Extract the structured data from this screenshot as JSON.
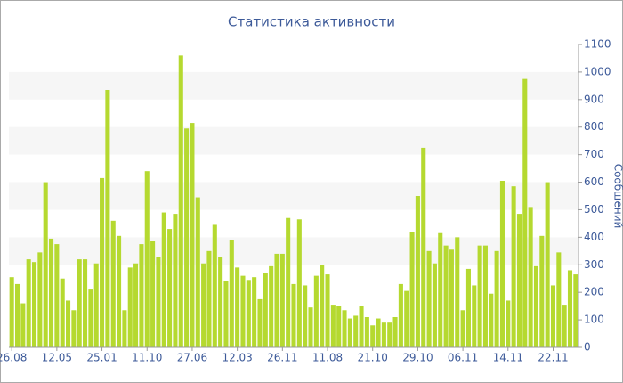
{
  "chart_data": {
    "type": "bar",
    "title": "Статистика активности",
    "y_label": "Сообщений",
    "categories": [
      "26.08",
      null,
      null,
      null,
      null,
      null,
      null,
      null,
      "12.05",
      null,
      null,
      null,
      null,
      null,
      null,
      null,
      "25.01",
      null,
      null,
      null,
      null,
      null,
      null,
      null,
      "11.10",
      null,
      null,
      null,
      null,
      null,
      null,
      null,
      "27.06",
      null,
      null,
      null,
      null,
      null,
      null,
      null,
      "12.03",
      null,
      null,
      null,
      null,
      null,
      null,
      null,
      "26.11",
      null,
      null,
      null,
      null,
      null,
      null,
      null,
      "11.08",
      null,
      null,
      null,
      null,
      null,
      null,
      null,
      "21.10",
      null,
      null,
      null,
      null,
      null,
      null,
      null,
      "29.10",
      null,
      null,
      null,
      null,
      null,
      null,
      null,
      "06.11",
      null,
      null,
      null,
      null,
      null,
      null,
      null,
      "14.11",
      null,
      null,
      null,
      null,
      null,
      null,
      null,
      "22.11",
      null,
      null,
      null,
      null
    ],
    "values": [
      255,
      230,
      160,
      320,
      310,
      345,
      600,
      395,
      375,
      250,
      170,
      135,
      320,
      320,
      210,
      305,
      615,
      935,
      460,
      405,
      135,
      290,
      305,
      375,
      640,
      385,
      330,
      490,
      430,
      485,
      1060,
      795,
      815,
      545,
      305,
      350,
      445,
      330,
      240,
      390,
      290,
      260,
      245,
      255,
      175,
      270,
      295,
      340,
      340,
      470,
      230,
      465,
      225,
      145,
      260,
      300,
      265,
      155,
      150,
      135,
      105,
      115,
      150,
      110,
      80,
      105,
      90,
      90,
      110,
      230,
      205,
      420,
      550,
      725,
      350,
      305,
      415,
      370,
      355,
      400,
      135,
      285,
      225,
      370,
      370,
      195,
      350,
      605,
      170,
      585,
      485,
      975,
      510,
      295,
      405,
      600,
      225,
      345,
      155,
      280,
      265
    ],
    "color": "#b5d930",
    "ylim": [
      0,
      1100
    ],
    "yticks": [
      0,
      100,
      200,
      300,
      400,
      500,
      600,
      700,
      800,
      900,
      1000,
      1100
    ],
    "grid": "bands"
  }
}
